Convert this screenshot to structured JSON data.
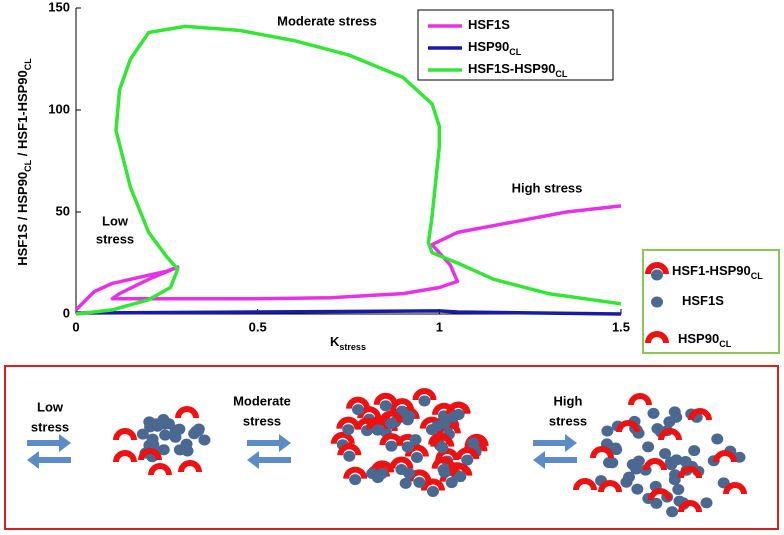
{
  "chart_data": {
    "type": "line",
    "y_label": [
      "HSF1S / HSP90",
      "CL",
      " / HSF1-HSP90",
      "CL"
    ],
    "x_label": [
      "K",
      "stress"
    ],
    "xlim": [
      0,
      1.5
    ],
    "xticks": [
      0,
      0.5,
      1,
      1.5
    ],
    "ylim": [
      0,
      150
    ],
    "yticks": [
      0,
      50,
      100,
      150
    ],
    "legend": "upper right",
    "annotations": [
      [
        "Moderate stress"
      ],
      [
        "High stress"
      ],
      [
        "Low",
        "stress"
      ]
    ],
    "series": [
      {
        "name": "HSF1S",
        "name_sub": "",
        "color": "#e632e6",
        "x": [
          0,
          0.05,
          0.1,
          0.15,
          0.2,
          0.25,
          0.28,
          0.2,
          0.12,
          0.1,
          0.15,
          0.3,
          0.5,
          0.7,
          0.9,
          1.0,
          1.05,
          1.03,
          1.0,
          0.98,
          1.05,
          1.2,
          1.35,
          1.5
        ],
        "values": [
          2,
          11,
          15,
          17,
          19,
          21,
          23,
          17,
          10,
          7.5,
          7.5,
          7.5,
          7.5,
          8,
          10,
          13,
          16,
          24,
          30,
          34,
          40,
          45,
          50,
          53
        ]
      },
      {
        "name": "HSP90",
        "name_sub": "CL",
        "color": "#1a1aa8",
        "x": [
          0,
          0.5,
          1.0,
          1.05,
          1.5
        ],
        "values": [
          0.5,
          1,
          1.5,
          1,
          0
        ]
      },
      {
        "name": "HSF1S-HSP90",
        "name_sub": "CL",
        "color": "#33e633",
        "x": [
          0,
          0.1,
          0.2,
          0.26,
          0.28,
          0.25,
          0.2,
          0.15,
          0.11,
          0.12,
          0.15,
          0.2,
          0.3,
          0.45,
          0.6,
          0.75,
          0.9,
          0.98,
          1.0,
          1.0,
          0.99,
          0.98,
          0.97,
          0.98,
          1.05,
          1.15,
          1.3,
          1.5
        ],
        "values": [
          0,
          2,
          7,
          13,
          22,
          28,
          40,
          62,
          90,
          110,
          125,
          138,
          141,
          139,
          134,
          127,
          116,
          103,
          92,
          82,
          65,
          48,
          35,
          30,
          25,
          17,
          10,
          5
        ]
      }
    ]
  },
  "schematic": {
    "key": [
      [
        "HSF1-HSP90",
        "CL"
      ],
      [
        "HSF1S"
      ],
      [
        "HSP90",
        "CL"
      ]
    ],
    "stages": [
      [
        "Low",
        "stress"
      ],
      [
        "Moderate",
        "stress"
      ],
      [
        "High",
        "stress"
      ]
    ]
  }
}
